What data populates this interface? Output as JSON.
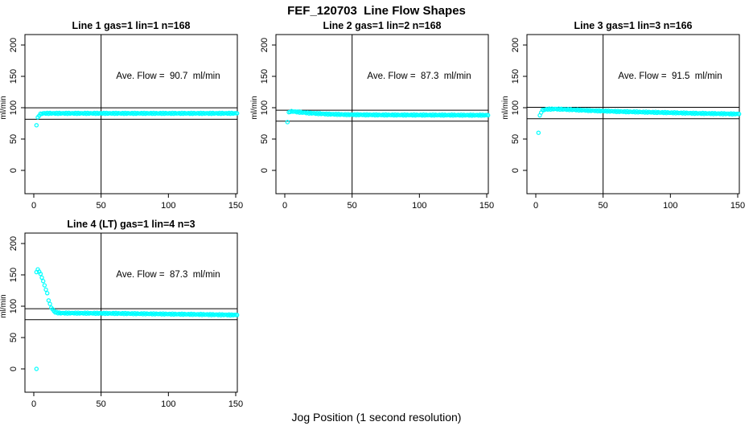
{
  "title": "FEF_120703  Line Flow Shapes",
  "xlabel": "Jog Position (1 second resolution)",
  "marker_color": "#00FFFF",
  "axis_color": "#000000",
  "background_color": "#ffffff",
  "chart_data": [
    {
      "type": "scatter",
      "title": "Line 1 gas=1 lin=1 n=168",
      "annotation": "Ave. Flow =  90.7  ml/min",
      "ave_flow": 90.7,
      "n": 168,
      "ylabel": "ml/min",
      "xticks": [
        0,
        50,
        100,
        150
      ],
      "yticks": [
        0,
        50,
        100,
        150,
        200
      ],
      "xlim": [
        -6,
        152
      ],
      "ylim": [
        -37,
        220
      ],
      "vline_x": 50,
      "hlines": [
        99.8,
        81.6
      ],
      "trend_keypoints": [
        [
          3,
          84
        ],
        [
          4,
          88
        ],
        [
          5,
          90
        ],
        [
          7,
          91
        ],
        [
          15,
          91
        ],
        [
          50,
          91
        ],
        [
          100,
          91
        ],
        [
          151,
          91
        ]
      ],
      "isolated_points": [
        [
          2,
          72
        ]
      ]
    },
    {
      "type": "scatter",
      "title": "Line 2 gas=1 lin=2 n=168",
      "annotation": "Ave. Flow =  87.3  ml/min",
      "ave_flow": 87.3,
      "n": 168,
      "ylabel": "ml/min",
      "xticks": [
        0,
        50,
        100,
        150
      ],
      "yticks": [
        0,
        50,
        100,
        150,
        200
      ],
      "xlim": [
        -6,
        152
      ],
      "ylim": [
        -37,
        220
      ],
      "vline_x": 50,
      "hlines": [
        96.0,
        78.6
      ],
      "trend_keypoints": [
        [
          3,
          92
        ],
        [
          4,
          94
        ],
        [
          6,
          94
        ],
        [
          10,
          93
        ],
        [
          18,
          91.5
        ],
        [
          30,
          90
        ],
        [
          45,
          89
        ],
        [
          70,
          88.5
        ],
        [
          151,
          88
        ]
      ],
      "isolated_points": [
        [
          2,
          77
        ]
      ]
    },
    {
      "type": "scatter",
      "title": "Line 3 gas=1 lin=3 n=166",
      "annotation": "Ave. Flow =  91.5  ml/min",
      "ave_flow": 91.5,
      "n": 166,
      "ylabel": "ml/min",
      "xticks": [
        0,
        50,
        100,
        150
      ],
      "yticks": [
        0,
        50,
        100,
        150,
        200
      ],
      "xlim": [
        -6,
        152
      ],
      "ylim": [
        -37,
        220
      ],
      "vline_x": 50,
      "hlines": [
        100.7,
        82.4
      ],
      "trend_keypoints": [
        [
          3,
          87
        ],
        [
          4,
          93
        ],
        [
          5,
          96
        ],
        [
          8,
          97.5
        ],
        [
          14,
          98
        ],
        [
          25,
          97
        ],
        [
          40,
          95.5
        ],
        [
          60,
          94
        ],
        [
          80,
          93
        ],
        [
          100,
          92
        ],
        [
          120,
          91
        ],
        [
          151,
          90
        ]
      ],
      "isolated_points": [
        [
          2,
          60
        ]
      ]
    },
    {
      "type": "scatter",
      "title": "Line 4 (LT) gas=1 lin=4 n=3",
      "annotation": "Ave. Flow =  87.3  ml/min",
      "ave_flow": 87.3,
      "n": 3,
      "ylabel": "ml/min",
      "xticks": [
        0,
        50,
        100,
        150
      ],
      "yticks": [
        0,
        50,
        100,
        150,
        200
      ],
      "xlim": [
        -6,
        152
      ],
      "ylim": [
        -37,
        220
      ],
      "vline_x": 50,
      "hlines": [
        96.0,
        78.6
      ],
      "trend_keypoints": [
        [
          2,
          155
        ],
        [
          3,
          158
        ],
        [
          4,
          156
        ],
        [
          5,
          151
        ],
        [
          6,
          146
        ],
        [
          7,
          140
        ],
        [
          8,
          133
        ],
        [
          9,
          127
        ],
        [
          10,
          120
        ],
        [
          11,
          110
        ],
        [
          12,
          103
        ],
        [
          13,
          98
        ],
        [
          14,
          95
        ],
        [
          15,
          92
        ],
        [
          16,
          90.5
        ],
        [
          18,
          89.5
        ],
        [
          20,
          89
        ],
        [
          30,
          89
        ],
        [
          60,
          88.5
        ],
        [
          100,
          87.5
        ],
        [
          120,
          87
        ],
        [
          151,
          86
        ]
      ],
      "isolated_points": [
        [
          2,
          0
        ]
      ]
    }
  ]
}
